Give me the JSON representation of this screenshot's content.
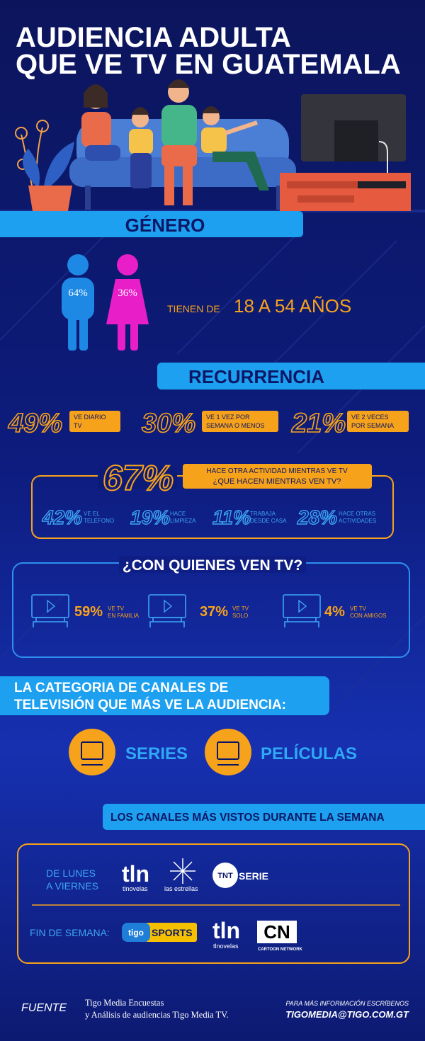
{
  "title": [
    "AUDIENCIA ADULTA",
    "QUE VE TV EN GUATEMALA"
  ],
  "genero": {
    "heading": "GÉNERO",
    "male": "64%",
    "female": "36%",
    "age_prefix": "TIENEN DE",
    "age_range": "18 A 54 AÑOS"
  },
  "recurrencia": {
    "heading": "RECURRENCIA",
    "items": [
      {
        "pct": "49%",
        "label": [
          "VE DIARIO",
          "TV"
        ]
      },
      {
        "pct": "30%",
        "label": [
          "VE 1 VEZ POR",
          "SEMANA O MENOS"
        ]
      },
      {
        "pct": "21%",
        "label": [
          "VE 2 VECES",
          "POR SEMANA"
        ]
      }
    ]
  },
  "actividad": {
    "pct": "67%",
    "label": [
      "HACE OTRA ACTIVIDAD MIENTRAS VE TV",
      "¿QUE HACEN MIENTRAS VEN TV?"
    ],
    "items": [
      {
        "pct": "42%",
        "label": [
          "VE EL",
          "TELÉFONO"
        ]
      },
      {
        "pct": "19%",
        "label": [
          "HACE",
          "LIMPIEZA"
        ]
      },
      {
        "pct": "11%",
        "label": [
          "TRABAJA",
          "DESDE CASA"
        ]
      },
      {
        "pct": "28%",
        "label": [
          "HACE OTRAS",
          "ACTIVIDADES"
        ]
      }
    ]
  },
  "con_quienes": {
    "heading": "¿CON QUIENES VEN TV?",
    "items": [
      {
        "pct": "59%",
        "label": [
          "VE TV",
          "EN FAMILIA"
        ]
      },
      {
        "pct": "37%",
        "label": [
          "VE TV",
          "SOLO"
        ]
      },
      {
        "pct": "4%",
        "label": [
          "VE TV",
          "CON AMIGOS"
        ]
      }
    ]
  },
  "categoria": {
    "heading": [
      "LA CATEGORIA DE CANALES DE",
      "TELEVISIÓN QUE MÁS VE LA AUDIENCIA:"
    ],
    "items": [
      "SERIES",
      "PELÍCULAS"
    ]
  },
  "canales": {
    "heading": "LOS CANALES MÁS VISTOS DURANTE LA SEMANA",
    "weekdays": {
      "label": [
        "DE LUNES",
        "A VIERNES"
      ],
      "tln": [
        "tln",
        "tlnovelas"
      ],
      "estrellas": "las estrellas",
      "tnt": [
        "TNT",
        "SERIE"
      ]
    },
    "weekend": {
      "label": "FIN DE SEMANA:",
      "tigo": [
        "tigo",
        "SPORTS"
      ],
      "tln": [
        "tln",
        "tlnovelas"
      ],
      "cn": [
        "CN",
        "CARTOON NETWORK"
      ]
    }
  },
  "footer": {
    "fuente": "FUENTE",
    "source": [
      "Tigo Media Encuestas",
      "y Análisis de audiencias Tigo Media TV."
    ],
    "contact": [
      "PARA MÁS INFORMACIÓN ESCRÍBENOS",
      "TIGOMEDIA@TIGO.COM.GT"
    ]
  }
}
